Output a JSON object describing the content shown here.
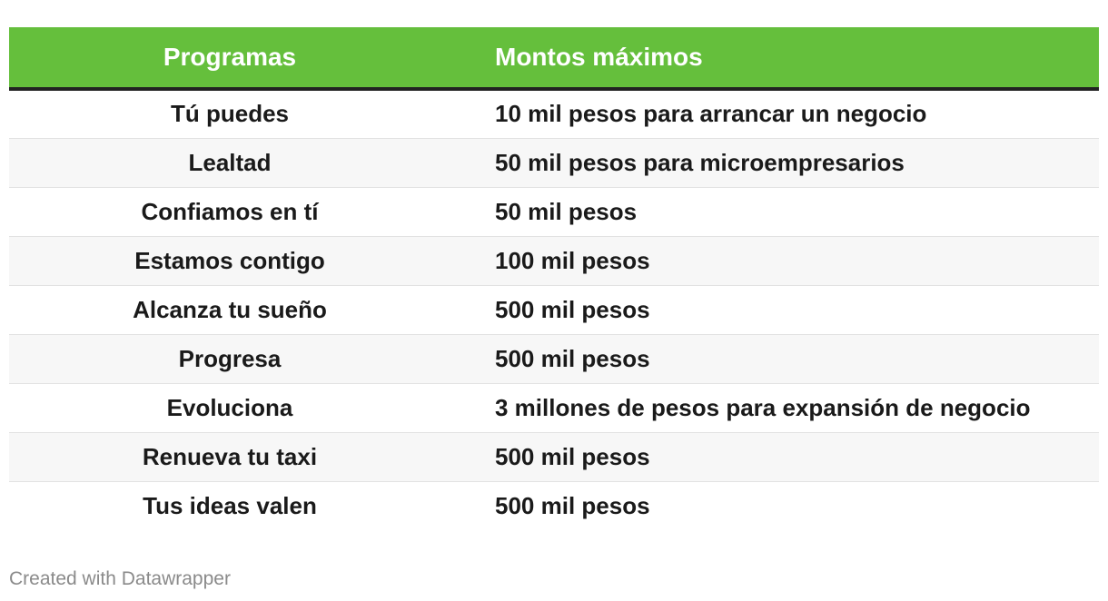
{
  "chart_data": {
    "type": "table",
    "columns": [
      "Programas",
      "Montos máximos"
    ],
    "rows": [
      {
        "programa": "Tú puedes",
        "monto": "10 mil pesos para arrancar un negocio"
      },
      {
        "programa": "Lealtad",
        "monto": "50 mil pesos para microempresarios"
      },
      {
        "programa": "Confiamos en tí",
        "monto": "50 mil pesos"
      },
      {
        "programa": "Estamos contigo",
        "monto": "100 mil pesos"
      },
      {
        "programa": "Alcanza tu sueño",
        "monto": "500 mil pesos"
      },
      {
        "programa": "Progresa",
        "monto": "500 mil pesos"
      },
      {
        "programa": "Evoluciona",
        "monto": "3 millones de pesos para expansión de negocio"
      },
      {
        "programa": "Renueva tu taxi",
        "monto": "500 mil pesos"
      },
      {
        "programa": "Tus ideas valen",
        "monto": "500 mil pesos"
      }
    ],
    "header_color": "#65bf3c"
  },
  "footer": {
    "credit": "Created with Datawrapper"
  }
}
